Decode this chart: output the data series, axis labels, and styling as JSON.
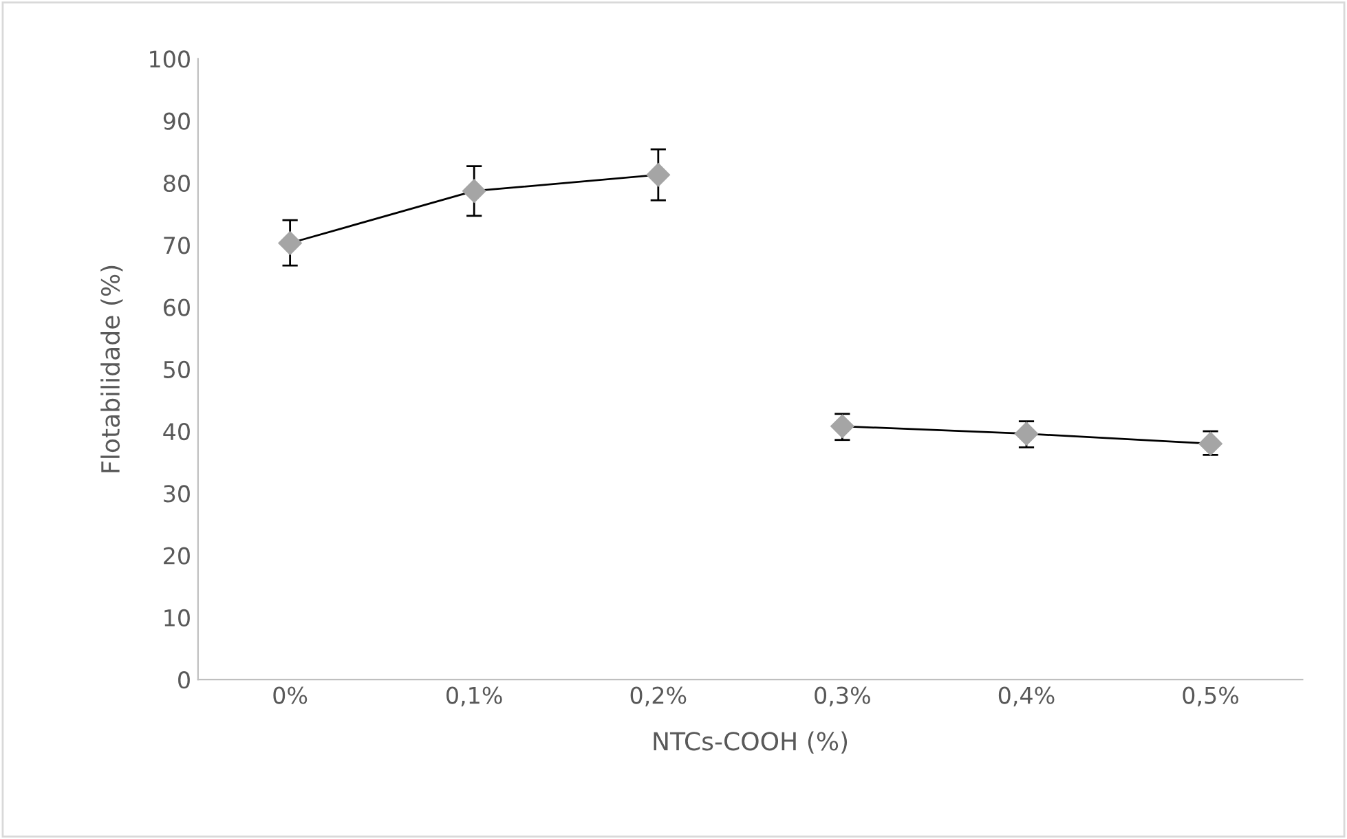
{
  "chart_data": {
    "type": "line",
    "xlabel": "NTCs-COOH (%)",
    "ylabel": "Flotabilidade (%)",
    "categories": [
      "0%",
      "0,1%",
      "0,2%",
      "0,3%",
      "0,4%",
      "0,5%"
    ],
    "series": [
      {
        "color": "#a5a5a5",
        "values": [
          70.3,
          78.7,
          81.3,
          null,
          null,
          null
        ],
        "errors": [
          [
            66.7,
            74.0
          ],
          [
            74.7,
            82.7
          ],
          [
            77.2,
            85.4
          ],
          null,
          null,
          null
        ]
      },
      {
        "color": "#a5a5a5",
        "values": [
          null,
          null,
          null,
          40.8,
          39.6,
          38.0
        ],
        "errors": [
          null,
          null,
          null,
          [
            38.6,
            42.8
          ],
          [
            37.4,
            41.6
          ],
          [
            36.2,
            40.0
          ]
        ]
      }
    ],
    "ylim": [
      0,
      100
    ],
    "yticks": [
      0,
      10,
      20,
      30,
      40,
      50,
      60,
      70,
      80,
      90,
      100
    ],
    "grid": false,
    "legend": false,
    "marker": "diamond",
    "line_style": "solid"
  }
}
